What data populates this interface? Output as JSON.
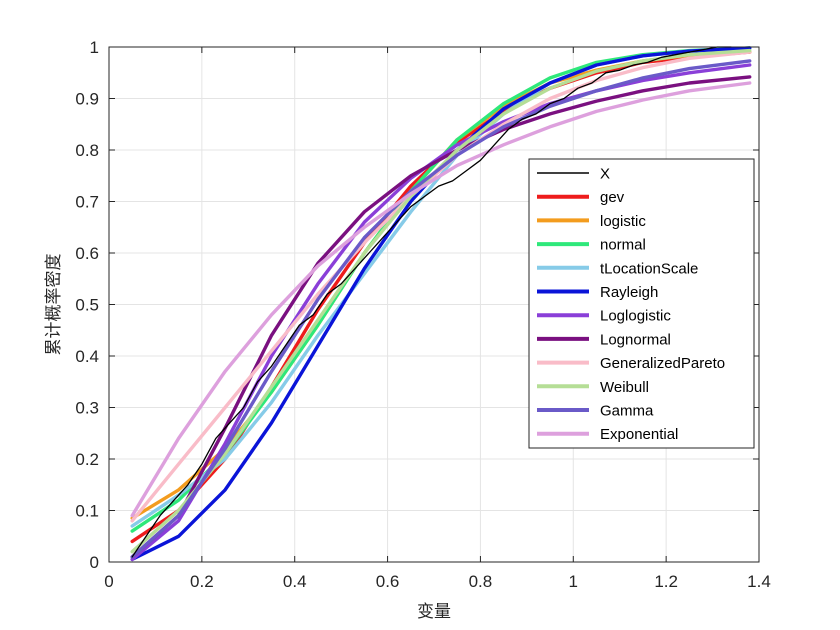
{
  "chart_data": {
    "type": "line",
    "title": "",
    "xlabel": "变量",
    "ylabel": "累计概率密度",
    "xlim": [
      0,
      1.4
    ],
    "ylim": [
      0,
      1
    ],
    "grid": true,
    "legend_position": "right-center",
    "x_ticks": [
      "0",
      "0.2",
      "0.4",
      "0.6",
      "0.8",
      "1",
      "1.2",
      "1.4"
    ],
    "y_ticks": [
      "0",
      "0.1",
      "0.2",
      "0.3",
      "0.4",
      "0.5",
      "0.6",
      "0.7",
      "0.8",
      "0.9",
      "1"
    ],
    "series": [
      {
        "name": "X",
        "color": "#000000",
        "x": [
          0.05,
          0.08,
          0.11,
          0.14,
          0.17,
          0.2,
          0.23,
          0.26,
          0.29,
          0.32,
          0.35,
          0.38,
          0.41,
          0.44,
          0.47,
          0.5,
          0.53,
          0.56,
          0.59,
          0.62,
          0.65,
          0.68,
          0.71,
          0.74,
          0.77,
          0.8,
          0.83,
          0.86,
          0.89,
          0.92,
          0.95,
          0.98,
          1.01,
          1.04,
          1.07,
          1.1,
          1.13,
          1.16,
          1.19,
          1.22,
          1.25,
          1.28,
          1.31,
          1.34
        ],
        "y": [
          0.01,
          0.05,
          0.09,
          0.12,
          0.15,
          0.19,
          0.24,
          0.27,
          0.3,
          0.35,
          0.38,
          0.42,
          0.46,
          0.48,
          0.52,
          0.54,
          0.57,
          0.6,
          0.63,
          0.66,
          0.69,
          0.71,
          0.73,
          0.74,
          0.76,
          0.78,
          0.81,
          0.84,
          0.86,
          0.87,
          0.89,
          0.9,
          0.92,
          0.93,
          0.95,
          0.955,
          0.965,
          0.97,
          0.98,
          0.985,
          0.99,
          0.995,
          1.0,
          1.0
        ]
      },
      {
        "name": "gev",
        "color": "#ee1c1c",
        "x": [
          0.05,
          0.15,
          0.25,
          0.35,
          0.45,
          0.55,
          0.65,
          0.75,
          0.85,
          0.95,
          1.05,
          1.15,
          1.25,
          1.38
        ],
        "y": [
          0.04,
          0.1,
          0.2,
          0.34,
          0.49,
          0.62,
          0.73,
          0.815,
          0.875,
          0.92,
          0.95,
          0.97,
          0.98,
          0.99
        ]
      },
      {
        "name": "logistic",
        "color": "#f39c1e",
        "x": [
          0.05,
          0.15,
          0.25,
          0.35,
          0.45,
          0.55,
          0.65,
          0.75,
          0.85,
          0.95,
          1.05,
          1.15,
          1.25,
          1.38
        ],
        "y": [
          0.085,
          0.14,
          0.22,
          0.33,
          0.46,
          0.6,
          0.72,
          0.82,
          0.885,
          0.93,
          0.955,
          0.973,
          0.984,
          0.99
        ]
      },
      {
        "name": "normal",
        "color": "#2ee87a",
        "x": [
          0.05,
          0.15,
          0.25,
          0.35,
          0.45,
          0.55,
          0.65,
          0.75,
          0.85,
          0.95,
          1.05,
          1.15,
          1.25,
          1.38
        ],
        "y": [
          0.06,
          0.12,
          0.21,
          0.33,
          0.46,
          0.6,
          0.72,
          0.82,
          0.89,
          0.94,
          0.97,
          0.985,
          0.993,
          0.998
        ]
      },
      {
        "name": "tLocationScale",
        "color": "#86cbe8",
        "x": [
          0.05,
          0.15,
          0.25,
          0.35,
          0.45,
          0.55,
          0.65,
          0.75,
          0.85,
          0.95,
          1.05,
          1.15,
          1.25,
          1.38
        ],
        "y": [
          0.07,
          0.13,
          0.2,
          0.31,
          0.44,
          0.56,
          0.68,
          0.79,
          0.87,
          0.93,
          0.965,
          0.983,
          0.992,
          0.997
        ]
      },
      {
        "name": "Rayleigh",
        "color": "#0a14d8",
        "x": [
          0.05,
          0.15,
          0.25,
          0.35,
          0.45,
          0.55,
          0.65,
          0.75,
          0.85,
          0.95,
          1.05,
          1.15,
          1.25,
          1.38
        ],
        "y": [
          0.005,
          0.05,
          0.14,
          0.27,
          0.42,
          0.57,
          0.7,
          0.8,
          0.88,
          0.93,
          0.965,
          0.983,
          0.992,
          0.998
        ]
      },
      {
        "name": "Loglogistic",
        "color": "#8a3fd8",
        "x": [
          0.05,
          0.15,
          0.25,
          0.35,
          0.45,
          0.55,
          0.65,
          0.75,
          0.85,
          0.95,
          1.05,
          1.15,
          1.25,
          1.38
        ],
        "y": [
          0.005,
          0.08,
          0.23,
          0.4,
          0.54,
          0.66,
          0.745,
          0.81,
          0.855,
          0.89,
          0.915,
          0.935,
          0.95,
          0.965
        ]
      },
      {
        "name": "Lognormal",
        "color": "#7a1080",
        "x": [
          0.05,
          0.15,
          0.25,
          0.35,
          0.45,
          0.55,
          0.65,
          0.75,
          0.85,
          0.95,
          1.05,
          1.15,
          1.25,
          1.38
        ],
        "y": [
          0.01,
          0.09,
          0.26,
          0.44,
          0.58,
          0.68,
          0.75,
          0.8,
          0.84,
          0.87,
          0.895,
          0.915,
          0.93,
          0.942
        ]
      },
      {
        "name": "GeneralizedPareto",
        "color": "#f9bcc8",
        "x": [
          0.05,
          0.15,
          0.25,
          0.35,
          0.45,
          0.55,
          0.65,
          0.75,
          0.85,
          0.95,
          1.05,
          1.15,
          1.25,
          1.38
        ],
        "y": [
          0.08,
          0.19,
          0.3,
          0.41,
          0.52,
          0.62,
          0.71,
          0.79,
          0.85,
          0.9,
          0.935,
          0.96,
          0.978,
          0.99
        ]
      },
      {
        "name": "Weibull",
        "color": "#b5de96",
        "x": [
          0.05,
          0.15,
          0.25,
          0.35,
          0.45,
          0.55,
          0.65,
          0.75,
          0.85,
          0.95,
          1.05,
          1.15,
          1.25,
          1.38
        ],
        "y": [
          0.02,
          0.1,
          0.21,
          0.34,
          0.47,
          0.6,
          0.71,
          0.8,
          0.87,
          0.92,
          0.953,
          0.973,
          0.985,
          0.993
        ]
      },
      {
        "name": "Gamma",
        "color": "#6a5ac8",
        "x": [
          0.05,
          0.15,
          0.25,
          0.35,
          0.45,
          0.55,
          0.65,
          0.75,
          0.85,
          0.95,
          1.05,
          1.15,
          1.25,
          1.38
        ],
        "y": [
          0.01,
          0.09,
          0.22,
          0.37,
          0.51,
          0.63,
          0.72,
          0.79,
          0.845,
          0.885,
          0.915,
          0.94,
          0.958,
          0.973
        ]
      },
      {
        "name": "Exponential",
        "color": "#dda0dd",
        "x": [
          0.05,
          0.15,
          0.25,
          0.35,
          0.45,
          0.55,
          0.65,
          0.75,
          0.85,
          0.95,
          1.05,
          1.15,
          1.25,
          1.38
        ],
        "y": [
          0.09,
          0.24,
          0.37,
          0.48,
          0.575,
          0.65,
          0.715,
          0.77,
          0.81,
          0.845,
          0.875,
          0.897,
          0.915,
          0.93
        ]
      }
    ]
  }
}
